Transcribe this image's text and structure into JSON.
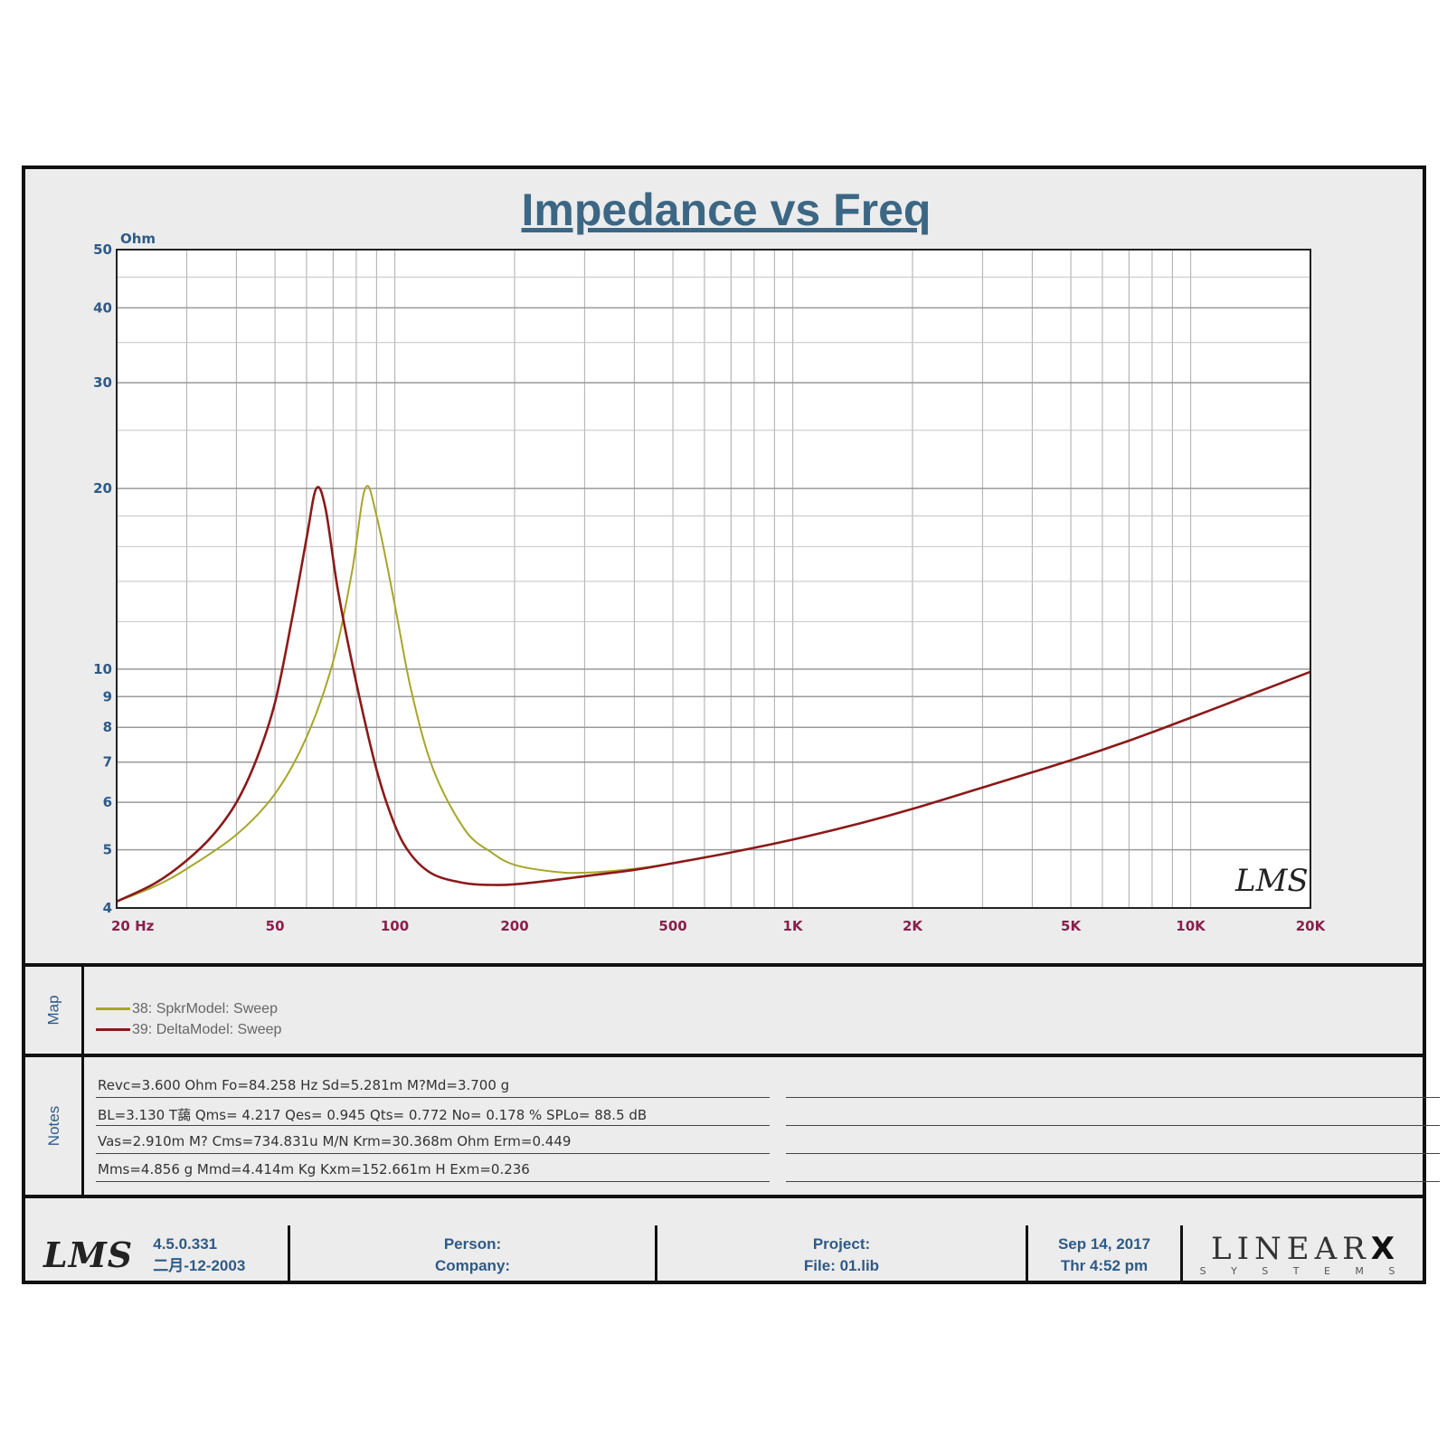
{
  "chart_data": {
    "type": "line",
    "title": "Impedance vs Freq",
    "ylabel": "Ohm",
    "x_scale": "log",
    "y_scale": "log",
    "xlim": [
      20,
      20000
    ],
    "ylim": [
      4,
      50
    ],
    "x_ticks": [
      {
        "value": 20,
        "label": "20  Hz"
      },
      {
        "value": 50,
        "label": "50"
      },
      {
        "value": 100,
        "label": "100"
      },
      {
        "value": 200,
        "label": "200"
      },
      {
        "value": 500,
        "label": "500"
      },
      {
        "value": 1000,
        "label": "1K"
      },
      {
        "value": 2000,
        "label": "2K"
      },
      {
        "value": 5000,
        "label": "5K"
      },
      {
        "value": 10000,
        "label": "10K"
      },
      {
        "value": 20000,
        "label": "20K"
      }
    ],
    "y_ticks": [
      {
        "value": 4,
        "label": "4"
      },
      {
        "value": 5,
        "label": "5"
      },
      {
        "value": 6,
        "label": "6"
      },
      {
        "value": 7,
        "label": "7"
      },
      {
        "value": 8,
        "label": "8"
      },
      {
        "value": 9,
        "label": "9"
      },
      {
        "value": 10,
        "label": "10"
      },
      {
        "value": 20,
        "label": "20"
      },
      {
        "value": 30,
        "label": "30"
      },
      {
        "value": 40,
        "label": "40"
      },
      {
        "value": 50,
        "label": "50"
      }
    ],
    "grid": true,
    "series": [
      {
        "name": "38: SpkrModel: Sweep",
        "color": "#a6a62a",
        "points": [
          [
            20,
            4.1
          ],
          [
            25,
            4.35
          ],
          [
            30,
            4.65
          ],
          [
            40,
            5.3
          ],
          [
            50,
            6.2
          ],
          [
            60,
            7.7
          ],
          [
            70,
            10.3
          ],
          [
            78,
            14.5
          ],
          [
            84.26,
            20.0
          ],
          [
            90,
            18.0
          ],
          [
            100,
            12.8
          ],
          [
            110,
            9.2
          ],
          [
            125,
            6.8
          ],
          [
            150,
            5.4
          ],
          [
            175,
            4.95
          ],
          [
            200,
            4.72
          ],
          [
            250,
            4.6
          ],
          [
            300,
            4.58
          ],
          [
            400,
            4.65
          ],
          [
            500,
            4.75
          ],
          [
            700,
            4.95
          ],
          [
            1000,
            5.2
          ],
          [
            1500,
            5.55
          ],
          [
            2000,
            5.85
          ],
          [
            3000,
            6.35
          ],
          [
            5000,
            7.05
          ],
          [
            7000,
            7.6
          ],
          [
            10000,
            8.3
          ],
          [
            15000,
            9.2
          ],
          [
            20000,
            9.9
          ]
        ]
      },
      {
        "name": "39: DeltaModel: Sweep",
        "color": "#8b1a1a",
        "points": [
          [
            20,
            4.1
          ],
          [
            25,
            4.4
          ],
          [
            30,
            4.8
          ],
          [
            35,
            5.3
          ],
          [
            40,
            6.0
          ],
          [
            45,
            7.1
          ],
          [
            50,
            8.8
          ],
          [
            55,
            12.0
          ],
          [
            60,
            16.5
          ],
          [
            63.5,
            20.0
          ],
          [
            67,
            18.5
          ],
          [
            72,
            13.5
          ],
          [
            80,
            9.5
          ],
          [
            90,
            6.8
          ],
          [
            100,
            5.5
          ],
          [
            110,
            4.9
          ],
          [
            125,
            4.55
          ],
          [
            150,
            4.4
          ],
          [
            175,
            4.37
          ],
          [
            200,
            4.38
          ],
          [
            250,
            4.45
          ],
          [
            300,
            4.52
          ],
          [
            400,
            4.63
          ],
          [
            500,
            4.75
          ],
          [
            700,
            4.95
          ],
          [
            1000,
            5.2
          ],
          [
            1500,
            5.55
          ],
          [
            2000,
            5.85
          ],
          [
            3000,
            6.35
          ],
          [
            5000,
            7.05
          ],
          [
            7000,
            7.6
          ],
          [
            10000,
            8.3
          ],
          [
            15000,
            9.2
          ],
          [
            20000,
            9.9
          ]
        ]
      }
    ]
  },
  "sidebar": {
    "map_label": "Map",
    "notes_label": "Notes"
  },
  "notes": [
    "Revc=3.600 Ohm  Fo=84.258 Hz  Sd=5.281m M?Md=3.700 g",
    "BL=3.130 T藹  Qms= 4.217  Qes= 0.945  Qts= 0.772  No= 0.178 %  SPLo= 88.5 dB",
    "Vas=2.910m M? Cms=734.831u M/N  Krm=30.368m Ohm  Erm=0.449",
    "Mms=4.856 g  Mmd=4.414m Kg  Kxm=152.661m H  Exm=0.236"
  ],
  "footer": {
    "logo_text": "LMS",
    "version": "4.5.0.331",
    "build_date": "二月-12-2003",
    "person_label": "Person:",
    "company_label": "Company:",
    "project_label": "Project:",
    "file_label": "File: 01.lib",
    "date": "Sep 14, 2017",
    "time": "Thr  4:52 pm",
    "brand_main": "LINEAR",
    "brand_x": "X",
    "brand_sub": "S Y S T E M S"
  },
  "watermark": "LMS"
}
